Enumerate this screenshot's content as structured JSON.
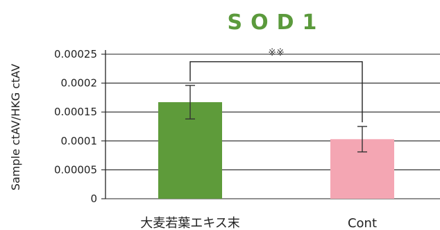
{
  "chart_data": {
    "type": "bar",
    "title": "SOD1",
    "xlabel": "",
    "ylabel": "Sample ctAV/HKG ctAV",
    "ylim": [
      0,
      0.00025
    ],
    "yticks": [
      "0",
      "0.00005",
      "0.0001",
      "0.00015",
      "0.0002",
      "0.00025"
    ],
    "grid": true,
    "categories": [
      "大麦若葉エキス末",
      "Cont"
    ],
    "values": [
      0.000167,
      0.000103
    ],
    "error": [
      2.9e-05,
      2.2e-05
    ],
    "colors": [
      "#5e9b3a",
      "#f4a6b3"
    ],
    "significance": {
      "label": "※※",
      "between": [
        0,
        1
      ],
      "y": 0.000237
    }
  }
}
